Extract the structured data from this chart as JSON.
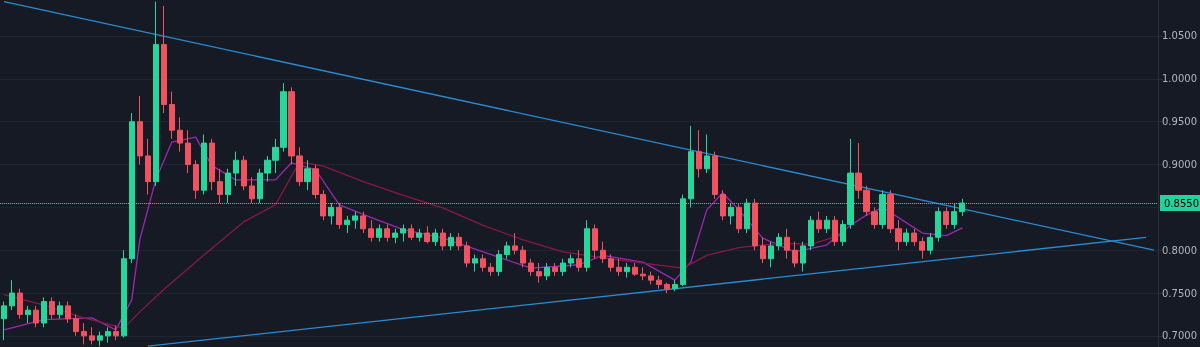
{
  "chart_data": {
    "type": "candlestick",
    "categories": [
      null,
      null,
      null,
      null,
      null,
      null,
      null,
      null,
      null,
      null,
      null,
      null,
      null,
      null,
      null,
      null,
      null,
      null,
      null,
      null,
      null,
      null,
      null,
      null,
      null,
      null,
      null,
      null,
      null,
      null,
      null,
      null,
      null,
      null,
      null,
      null,
      null,
      null,
      null,
      null,
      null,
      null,
      null,
      null,
      null,
      null,
      null,
      null,
      null,
      null,
      null,
      null,
      null,
      null,
      null,
      null,
      null,
      null,
      null,
      null,
      null,
      null,
      null,
      null,
      null,
      null,
      null,
      null,
      null,
      null,
      null,
      null,
      null,
      null,
      null,
      null,
      null,
      null,
      null,
      null,
      null,
      null,
      null,
      null,
      null,
      null,
      null,
      null,
      null,
      null,
      null,
      null,
      null,
      null,
      null,
      null,
      null,
      null,
      null,
      null,
      null,
      null,
      null,
      null,
      null,
      null,
      null,
      null,
      null,
      null,
      null,
      null,
      null,
      null,
      null,
      null,
      null,
      null,
      null,
      null,
      null,
      null,
      null,
      null,
      null,
      null,
      null,
      null,
      null,
      null,
      null,
      null,
      null,
      null,
      null,
      null,
      null,
      null,
      null,
      null,
      null,
      null,
      null,
      null,
      null
    ],
    "ohlc": [
      [
        0.72,
        0.74,
        0.695,
        0.735
      ],
      [
        0.735,
        0.765,
        0.73,
        0.75
      ],
      [
        0.75,
        0.755,
        0.72,
        0.725
      ],
      [
        0.725,
        0.735,
        0.715,
        0.73
      ],
      [
        0.73,
        0.735,
        0.71,
        0.715
      ],
      [
        0.715,
        0.745,
        0.71,
        0.74
      ],
      [
        0.74,
        0.745,
        0.72,
        0.725
      ],
      [
        0.725,
        0.74,
        0.72,
        0.735
      ],
      [
        0.735,
        0.74,
        0.715,
        0.72
      ],
      [
        0.72,
        0.725,
        0.7,
        0.705
      ],
      [
        0.705,
        0.715,
        0.69,
        0.7
      ],
      [
        0.7,
        0.71,
        0.69,
        0.695
      ],
      [
        0.695,
        0.705,
        0.688,
        0.7
      ],
      [
        0.7,
        0.71,
        0.692,
        0.705
      ],
      [
        0.705,
        0.712,
        0.695,
        0.7
      ],
      [
        0.7,
        0.8,
        0.698,
        0.79
      ],
      [
        0.79,
        0.96,
        0.785,
        0.95
      ],
      [
        0.95,
        0.98,
        0.9,
        0.91
      ],
      [
        0.91,
        0.93,
        0.865,
        0.88
      ],
      [
        0.88,
        1.09,
        0.875,
        1.04
      ],
      [
        1.04,
        1.085,
        0.96,
        0.97
      ],
      [
        0.97,
        0.985,
        0.93,
        0.94
      ],
      [
        0.94,
        0.955,
        0.915,
        0.925
      ],
      [
        0.925,
        0.94,
        0.89,
        0.9
      ],
      [
        0.9,
        0.905,
        0.86,
        0.87
      ],
      [
        0.87,
        0.935,
        0.865,
        0.925
      ],
      [
        0.925,
        0.93,
        0.87,
        0.88
      ],
      [
        0.88,
        0.895,
        0.855,
        0.865
      ],
      [
        0.865,
        0.895,
        0.855,
        0.89
      ],
      [
        0.89,
        0.915,
        0.875,
        0.905
      ],
      [
        0.905,
        0.91,
        0.87,
        0.875
      ],
      [
        0.875,
        0.885,
        0.855,
        0.86
      ],
      [
        0.86,
        0.895,
        0.855,
        0.89
      ],
      [
        0.89,
        0.91,
        0.88,
        0.905
      ],
      [
        0.905,
        0.93,
        0.89,
        0.92
      ],
      [
        0.92,
        0.995,
        0.915,
        0.985
      ],
      [
        0.985,
        0.99,
        0.9,
        0.91
      ],
      [
        0.91,
        0.92,
        0.875,
        0.88
      ],
      [
        0.88,
        0.905,
        0.87,
        0.895
      ],
      [
        0.895,
        0.9,
        0.86,
        0.865
      ],
      [
        0.865,
        0.87,
        0.835,
        0.84
      ],
      [
        0.84,
        0.855,
        0.83,
        0.85
      ],
      [
        0.85,
        0.855,
        0.825,
        0.83
      ],
      [
        0.83,
        0.84,
        0.82,
        0.835
      ],
      [
        0.835,
        0.845,
        0.825,
        0.84
      ],
      [
        0.84,
        0.845,
        0.82,
        0.825
      ],
      [
        0.825,
        0.835,
        0.81,
        0.815
      ],
      [
        0.815,
        0.83,
        0.81,
        0.825
      ],
      [
        0.825,
        0.83,
        0.81,
        0.815
      ],
      [
        0.815,
        0.825,
        0.808,
        0.82
      ],
      [
        0.82,
        0.83,
        0.81,
        0.825
      ],
      [
        0.825,
        0.83,
        0.812,
        0.815
      ],
      [
        0.815,
        0.825,
        0.81,
        0.82
      ],
      [
        0.82,
        0.828,
        0.808,
        0.81
      ],
      [
        0.81,
        0.825,
        0.805,
        0.82
      ],
      [
        0.82,
        0.825,
        0.8,
        0.805
      ],
      [
        0.805,
        0.82,
        0.8,
        0.815
      ],
      [
        0.815,
        0.82,
        0.8,
        0.805
      ],
      [
        0.805,
        0.81,
        0.78,
        0.785
      ],
      [
        0.785,
        0.795,
        0.775,
        0.79
      ],
      [
        0.79,
        0.795,
        0.775,
        0.78
      ],
      [
        0.78,
        0.785,
        0.77,
        0.775
      ],
      [
        0.775,
        0.8,
        0.77,
        0.795
      ],
      [
        0.795,
        0.81,
        0.79,
        0.805
      ],
      [
        0.805,
        0.82,
        0.795,
        0.8
      ],
      [
        0.8,
        0.805,
        0.78,
        0.785
      ],
      [
        0.785,
        0.79,
        0.77,
        0.775
      ],
      [
        0.775,
        0.785,
        0.762,
        0.77
      ],
      [
        0.77,
        0.785,
        0.765,
        0.78
      ],
      [
        0.78,
        0.785,
        0.77,
        0.775
      ],
      [
        0.775,
        0.79,
        0.77,
        0.785
      ],
      [
        0.785,
        0.795,
        0.78,
        0.79
      ],
      [
        0.79,
        0.8,
        0.775,
        0.78
      ],
      [
        0.78,
        0.835,
        0.775,
        0.825
      ],
      [
        0.825,
        0.83,
        0.79,
        0.8
      ],
      [
        0.8,
        0.81,
        0.785,
        0.79
      ],
      [
        0.79,
        0.795,
        0.775,
        0.78
      ],
      [
        0.78,
        0.79,
        0.77,
        0.775
      ],
      [
        0.775,
        0.785,
        0.768,
        0.78
      ],
      [
        0.78,
        0.785,
        0.77,
        0.772
      ],
      [
        0.772,
        0.78,
        0.765,
        0.77
      ],
      [
        0.77,
        0.775,
        0.76,
        0.765
      ],
      [
        0.765,
        0.77,
        0.755,
        0.76
      ],
      [
        0.76,
        0.762,
        0.75,
        0.755
      ],
      [
        0.755,
        0.765,
        0.752,
        0.76
      ],
      [
        0.76,
        0.865,
        0.758,
        0.86
      ],
      [
        0.86,
        0.945,
        0.85,
        0.915
      ],
      [
        0.915,
        0.94,
        0.885,
        0.895
      ],
      [
        0.895,
        0.935,
        0.89,
        0.91
      ],
      [
        0.91,
        0.915,
        0.86,
        0.865
      ],
      [
        0.865,
        0.87,
        0.835,
        0.84
      ],
      [
        0.84,
        0.855,
        0.83,
        0.85
      ],
      [
        0.85,
        0.855,
        0.82,
        0.825
      ],
      [
        0.825,
        0.86,
        0.82,
        0.855
      ],
      [
        0.855,
        0.86,
        0.8,
        0.805
      ],
      [
        0.805,
        0.815,
        0.785,
        0.79
      ],
      [
        0.79,
        0.81,
        0.78,
        0.805
      ],
      [
        0.805,
        0.82,
        0.8,
        0.815
      ],
      [
        0.815,
        0.825,
        0.79,
        0.8
      ],
      [
        0.8,
        0.81,
        0.78,
        0.785
      ],
      [
        0.785,
        0.81,
        0.775,
        0.805
      ],
      [
        0.805,
        0.84,
        0.8,
        0.835
      ],
      [
        0.835,
        0.845,
        0.82,
        0.825
      ],
      [
        0.825,
        0.84,
        0.82,
        0.835
      ],
      [
        0.835,
        0.84,
        0.805,
        0.81
      ],
      [
        0.81,
        0.835,
        0.805,
        0.83
      ],
      [
        0.83,
        0.93,
        0.825,
        0.89
      ],
      [
        0.89,
        0.925,
        0.86,
        0.87
      ],
      [
        0.87,
        0.875,
        0.84,
        0.845
      ],
      [
        0.845,
        0.85,
        0.825,
        0.83
      ],
      [
        0.83,
        0.87,
        0.825,
        0.865
      ],
      [
        0.865,
        0.87,
        0.82,
        0.825
      ],
      [
        0.825,
        0.835,
        0.8,
        0.81
      ],
      [
        0.81,
        0.825,
        0.805,
        0.82
      ],
      [
        0.82,
        0.825,
        0.805,
        0.81
      ],
      [
        0.81,
        0.815,
        0.79,
        0.8
      ],
      [
        0.8,
        0.82,
        0.795,
        0.815
      ],
      [
        0.815,
        0.85,
        0.81,
        0.845
      ],
      [
        0.845,
        0.85,
        0.825,
        0.83
      ],
      [
        0.83,
        0.855,
        0.825,
        0.845
      ],
      [
        0.845,
        0.86,
        0.84,
        0.855
      ],
      null,
      null,
      null,
      null,
      null,
      null,
      null,
      null,
      null,
      null,
      null,
      null,
      null,
      null,
      null,
      null,
      null,
      null,
      null,
      null,
      null,
      null,
      null,
      null
    ],
    "colors": [
      "#26d69a",
      "#26d69a",
      "#f0525f",
      "#26d69a",
      "#f0525f",
      "#26d69a",
      "#f0525f",
      "#26d69a",
      "#f0525f",
      "#f0525f",
      "#f0525f",
      "#f0525f",
      "#26d69a",
      "#26d69a",
      "#f0525f",
      "#26d69a",
      "#26d69a",
      "#f0525f",
      "#f0525f",
      "#26d69a",
      "#f0525f",
      "#f0525f",
      "#f0525f",
      "#f0525f",
      "#f0525f",
      "#26d69a",
      "#f0525f",
      "#f0525f",
      "#26d69a",
      "#26d69a",
      "#f0525f",
      "#f0525f",
      "#26d69a",
      "#26d69a",
      "#26d69a",
      "#26d69a",
      "#f0525f",
      "#f0525f",
      "#26d69a",
      "#f0525f",
      "#f0525f",
      "#26d69a",
      "#f0525f",
      "#26d69a",
      "#26d69a",
      "#f0525f",
      "#f0525f",
      "#26d69a",
      "#f0525f",
      "#26d69a",
      "#26d69a",
      "#f0525f",
      "#26d69a",
      "#f0525f",
      "#26d69a",
      "#f0525f",
      "#26d69a",
      "#f0525f",
      "#f0525f",
      "#26d69a",
      "#f0525f",
      "#f0525f",
      "#26d69a",
      "#26d69a",
      "#f0525f",
      "#f0525f",
      "#f0525f",
      "#f0525f",
      "#26d69a",
      "#f0525f",
      "#26d69a",
      "#26d69a",
      "#f0525f",
      "#26d69a",
      "#f0525f",
      "#f0525f",
      "#f0525f",
      "#f0525f",
      "#26d69a",
      "#f0525f",
      "#f0525f",
      "#f0525f",
      "#f0525f",
      "#f0525f",
      "#26d69a",
      "#26d69a",
      "#26d69a",
      "#f0525f",
      "#26d69a",
      "#f0525f",
      "#f0525f",
      "#26d69a",
      "#f0525f",
      "#26d69a",
      "#f0525f",
      "#f0525f",
      "#26d69a",
      "#26d69a",
      "#f0525f",
      "#f0525f",
      "#26d69a",
      "#26d69a",
      "#f0525f",
      "#26d69a",
      "#f0525f",
      "#26d69a",
      "#26d69a",
      "#f0525f",
      "#f0525f",
      "#f0525f",
      "#26d69a",
      "#f0525f",
      "#f0525f",
      "#26d69a",
      "#f0525f",
      "#f0525f",
      "#26d69a",
      "#26d69a",
      "#f0525f",
      "#26d69a",
      "#26d69a",
      null,
      null,
      null,
      null,
      null,
      null,
      null,
      null,
      null,
      null,
      null,
      null,
      null,
      null,
      null,
      null,
      null,
      null,
      null,
      null,
      null,
      null,
      null,
      null
    ],
    "series": [
      {
        "type": "line",
        "color": "#9c27b0",
        "values": [
          0.707,
          null,
          null,
          null,
          null,
          0.719,
          null,
          null,
          null,
          null,
          null,
          0.721,
          null,
          null,
          0.707,
          null,
          0.742,
          0.812,
          null,
          0.882,
          null,
          0.926,
          null,
          null,
          0.932,
          null,
          0.899,
          null,
          null,
          0.882,
          null,
          null,
          null,
          null,
          0.882,
          null,
          0.902,
          null,
          null,
          0.894,
          null,
          null,
          0.853,
          null,
          null,
          null,
          0.838,
          null,
          null,
          null,
          0.824,
          null,
          null,
          null,
          null,
          0.814,
          null,
          null,
          null,
          null,
          0.798,
          null,
          null,
          null,
          null,
          null,
          0.779,
          null,
          null,
          null,
          null,
          null,
          0.783,
          null,
          null,
          0.794,
          null,
          null,
          null,
          null,
          0.786,
          null,
          null,
          null,
          0.765,
          null,
          0.786,
          null,
          0.847,
          null,
          0.867,
          null,
          0.847,
          null,
          null,
          0.814,
          null,
          null,
          null,
          0.798,
          null,
          null,
          null,
          0.806,
          null,
          null,
          0.829,
          null,
          0.841,
          null,
          0.85,
          null,
          0.838,
          null,
          null,
          0.82,
          null,
          null,
          0.817,
          null,
          0.826,
          null,
          null,
          null,
          null,
          null,
          null,
          null,
          null,
          null,
          null,
          null,
          null,
          null,
          null,
          null,
          null,
          null,
          null,
          null,
          null,
          null,
          null,
          null,
          null
        ]
      },
      {
        "type": "line",
        "color": "#8a1846",
        "values": [
          0.748,
          null,
          null,
          null,
          null,
          0.736,
          null,
          null,
          null,
          null,
          0.721,
          null,
          null,
          null,
          null,
          0.709,
          null,
          0.728,
          null,
          null,
          0.754,
          null,
          null,
          null,
          null,
          0.794,
          null,
          null,
          null,
          null,
          0.833,
          null,
          null,
          null,
          0.853,
          null,
          null,
          0.903,
          null,
          null,
          0.898,
          null,
          null,
          null,
          null,
          0.88,
          null,
          null,
          null,
          null,
          0.864,
          null,
          null,
          null,
          null,
          0.849,
          null,
          null,
          null,
          null,
          0.829,
          null,
          null,
          null,
          null,
          0.812,
          null,
          null,
          null,
          null,
          0.798,
          null,
          null,
          null,
          null,
          0.791,
          null,
          null,
          null,
          null,
          0.785,
          null,
          null,
          null,
          null,
          0.779,
          null,
          null,
          0.794,
          null,
          null,
          null,
          0.803,
          null,
          null,
          null,
          null,
          0.808,
          null,
          null,
          null,
          0.807,
          null,
          null,
          null,
          0.818,
          null,
          null,
          null,
          null,
          null,
          null,
          null,
          null,
          null,
          null,
          null,
          null,
          null,
          null,
          null,
          null,
          null,
          null,
          null,
          null,
          null,
          null,
          null,
          null,
          null,
          null,
          null,
          null,
          null,
          null,
          null,
          null,
          null,
          null,
          null,
          null,
          null,
          null,
          null
        ]
      },
      {
        "type": "line",
        "color": "#2a8bd0",
        "values": [
          1.09,
          null,
          null,
          null,
          null,
          null,
          null,
          null,
          null,
          null,
          null,
          null,
          null,
          null,
          null,
          null,
          null,
          null,
          null,
          null,
          null,
          null,
          null,
          null,
          null,
          null,
          null,
          null,
          null,
          null,
          null,
          null,
          null,
          null,
          null,
          null,
          null,
          null,
          null,
          null,
          null,
          null,
          null,
          null,
          null,
          null,
          null,
          null,
          null,
          null,
          null,
          null,
          null,
          null,
          null,
          null,
          null,
          null,
          null,
          null,
          null,
          null,
          null,
          null,
          null,
          null,
          null,
          null,
          null,
          null,
          null,
          null,
          null,
          null,
          null,
          null,
          null,
          null,
          null,
          null,
          null,
          null,
          null,
          null,
          null,
          null,
          null,
          null,
          null,
          null,
          null,
          null,
          null,
          null,
          null,
          null,
          null,
          null,
          null,
          null,
          null,
          null,
          null,
          null,
          null,
          null,
          null,
          null,
          null,
          null,
          null,
          null,
          null,
          null,
          null,
          null,
          null,
          null,
          null,
          null,
          null,
          null,
          null,
          null,
          null,
          null,
          null,
          null,
          null,
          null,
          null,
          null,
          null,
          null,
          null,
          null,
          null,
          null,
          null,
          null,
          null,
          null,
          null,
          null,
          0.8
        ]
      },
      {
        "type": "line",
        "color": "#2a8bd0",
        "values": [
          null,
          null,
          null,
          null,
          null,
          null,
          null,
          null,
          null,
          null,
          null,
          null,
          null,
          null,
          null,
          null,
          null,
          null,
          0.688,
          null,
          null,
          null,
          null,
          null,
          null,
          null,
          null,
          null,
          null,
          null,
          null,
          null,
          null,
          null,
          null,
          null,
          null,
          null,
          null,
          null,
          null,
          null,
          null,
          null,
          null,
          null,
          null,
          null,
          null,
          null,
          null,
          null,
          null,
          null,
          null,
          null,
          null,
          null,
          null,
          null,
          null,
          null,
          null,
          null,
          null,
          null,
          null,
          null,
          null,
          null,
          null,
          null,
          null,
          null,
          null,
          null,
          null,
          null,
          null,
          null,
          null,
          null,
          null,
          null,
          null,
          null,
          null,
          null,
          null,
          null,
          null,
          null,
          null,
          null,
          null,
          null,
          null,
          null,
          null,
          null,
          null,
          null,
          null,
          null,
          null,
          null,
          null,
          null,
          null,
          null,
          null,
          null,
          null,
          null,
          null,
          null,
          null,
          null,
          null,
          null,
          null,
          null,
          null,
          null,
          null,
          null,
          null,
          null,
          null,
          null,
          null,
          null,
          null,
          null,
          null,
          null,
          null,
          null,
          null,
          null,
          null,
          null,
          null,
          0.815,
          null
        ]
      }
    ],
    "ylim": [
      0.687,
      1.092
    ],
    "yticks": [
      {
        "value": 0.7,
        "label": "0.7000"
      },
      {
        "value": 0.75,
        "label": "0.7500"
      },
      {
        "value": 0.8,
        "label": "0.8000"
      },
      {
        "value": 0.85,
        "label": null
      },
      {
        "value": 0.9,
        "label": "0.9000"
      },
      {
        "value": 0.95,
        "label": "0.9500"
      },
      {
        "value": 1.0,
        "label": "1.0000"
      },
      {
        "value": 1.05,
        "label": "1.0500"
      }
    ],
    "ref_lines": [
      {
        "axis": "y",
        "value": 0.855,
        "label": "0.8550",
        "color": "#22d39b",
        "line_style": "dotted"
      }
    ],
    "grid": "y",
    "tick_labels": "y"
  }
}
